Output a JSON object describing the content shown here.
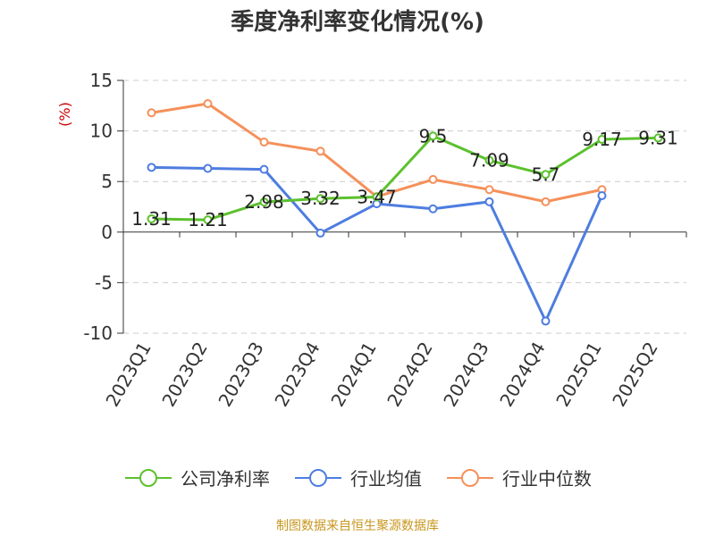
{
  "chart_data": {
    "type": "line",
    "title": "季度净利率变化情况(%)",
    "ylabel": "(%)",
    "categories": [
      "2023Q1",
      "2023Q2",
      "2023Q3",
      "2023Q4",
      "2024Q1",
      "2024Q2",
      "2024Q3",
      "2024Q4",
      "2025Q1",
      "2025Q2"
    ],
    "ylim": [
      -10,
      15
    ],
    "yticks": [
      15,
      10,
      5,
      0,
      -5,
      -10
    ],
    "grid": true,
    "legend_position": "bottom",
    "series": [
      {
        "name": "公司净利率",
        "color": "#5cc12e",
        "label_points": true,
        "values": [
          1.31,
          1.21,
          2.98,
          3.32,
          3.47,
          9.5,
          7.09,
          5.7,
          9.17,
          9.31
        ],
        "labels": [
          "1.31",
          "1.21",
          "2.98",
          "3.32",
          "3.47",
          "9.5",
          "7.09",
          "5.7",
          "9.17",
          "9.31"
        ]
      },
      {
        "name": "行业均值",
        "color": "#4e7de0",
        "label_points": false,
        "values": [
          6.4,
          6.3,
          6.2,
          -0.1,
          2.8,
          2.3,
          3.0,
          -8.8,
          3.6,
          null
        ]
      },
      {
        "name": "行业中位数",
        "color": "#f5905a",
        "label_points": false,
        "values": [
          11.8,
          12.7,
          8.9,
          8.0,
          3.5,
          5.2,
          4.2,
          3.0,
          4.2,
          null
        ]
      }
    ]
  },
  "footer": {
    "source": "制图数据来自恒生聚源数据库"
  }
}
